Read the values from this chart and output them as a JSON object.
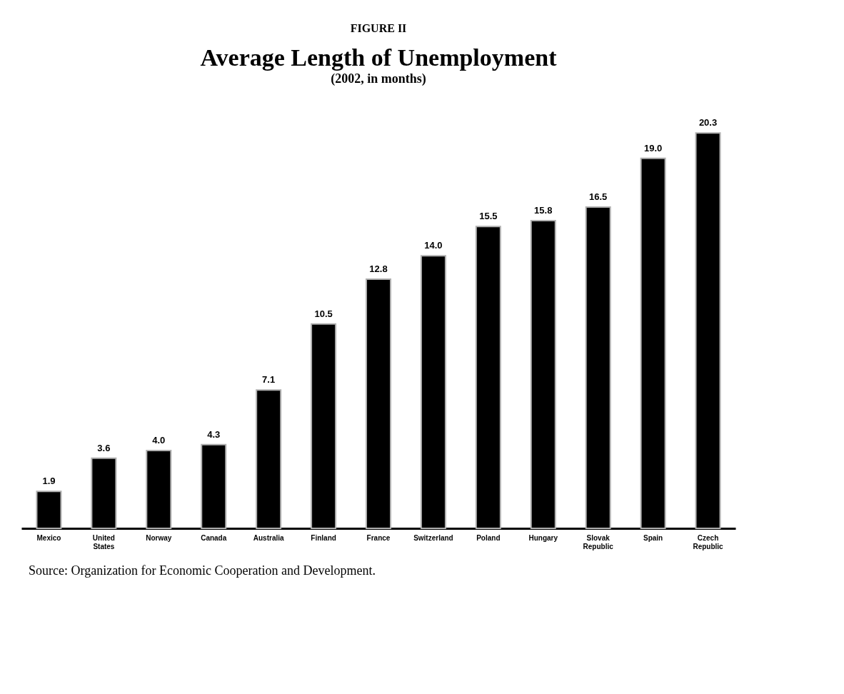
{
  "chart_data": {
    "type": "bar",
    "title": "Average Length of Unemployment",
    "subtitle": "(2002, in months)",
    "annotations": [
      "FIGURE II",
      "Source: Organization for Economic Cooperation and Development."
    ],
    "categories": [
      "Mexico",
      "United States",
      "Norway",
      "Canada",
      "Australia",
      "Finland",
      "France",
      "Switzerland",
      "Poland",
      "Hungary",
      "Slovak Republic",
      "Spain",
      "Czech Republic"
    ],
    "values": [
      1.9,
      3.6,
      4,
      4.3,
      7.1,
      10.5,
      12.8,
      14,
      15.5,
      15.8,
      16.5,
      19,
      20.3
    ],
    "value_labels": [
      "1.9",
      "3.6",
      "4.0",
      "4.3",
      "7.1",
      "10.5",
      "12.8",
      "14.0",
      "15.5",
      "15.8",
      "16.5",
      "19.0",
      "20.3"
    ],
    "color": "#000000",
    "grid": false
  }
}
